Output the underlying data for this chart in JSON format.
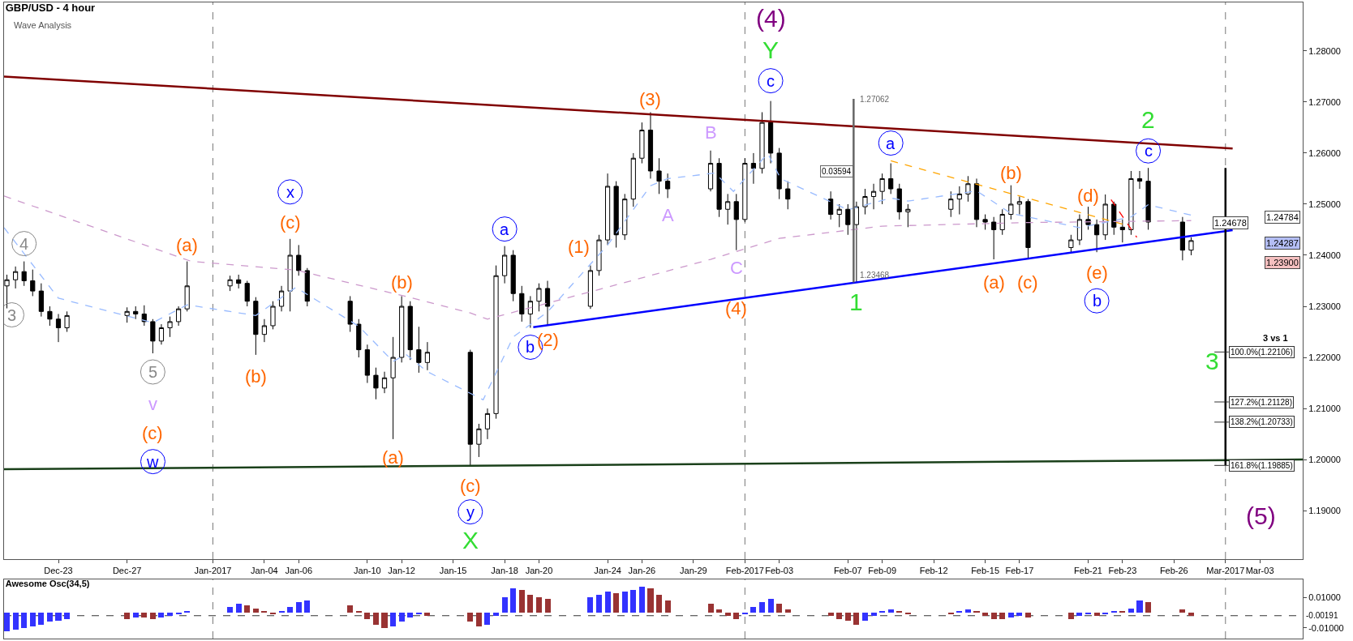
{
  "chart_data": [
    {
      "type": "candlestick",
      "title": "GBP/USD - 4 hour",
      "subtitle": "Wave Analysis",
      "color": "#000000",
      "x": [
        "2016-12-20T00:00",
        "2016-12-20T12:00",
        "2016-12-21T00:00",
        "2016-12-21T12:00",
        "2016-12-22T00:00",
        "2016-12-22T12:00",
        "2016-12-23T00:00",
        "2016-12-23T12:00",
        "2016-12-27T00:00",
        "2016-12-27T12:00",
        "2016-12-28T00:00",
        "2016-12-28T12:00",
        "2016-12-29T00:00",
        "2016-12-29T12:00",
        "2016-12-30T00:00",
        "2016-12-30T12:00",
        "2017-01-02T00:00",
        "2017-01-02T12:00",
        "2017-01-03T00:00",
        "2017-01-03T12:00",
        "2017-01-04T00:00",
        "2017-01-04T12:00",
        "2017-01-05T00:00",
        "2017-01-05T12:00",
        "2017-01-06T00:00",
        "2017-01-06T12:00",
        "2017-01-09T00:00",
        "2017-01-09T12:00",
        "2017-01-10T00:00",
        "2017-01-10T12:00",
        "2017-01-11T00:00",
        "2017-01-11T12:00",
        "2017-01-12T00:00",
        "2017-01-12T12:00",
        "2017-01-13T00:00",
        "2017-01-13T12:00",
        "2017-01-16T00:00",
        "2017-01-16T12:00",
        "2017-01-17T00:00",
        "2017-01-17T12:00",
        "2017-01-18T00:00",
        "2017-01-18T12:00",
        "2017-01-19T00:00",
        "2017-01-19T12:00",
        "2017-01-20T00:00",
        "2017-01-20T12:00",
        "2017-01-23T00:00",
        "2017-01-23T12:00",
        "2017-01-24T00:00",
        "2017-01-24T12:00",
        "2017-01-25T00:00",
        "2017-01-25T12:00",
        "2017-01-26T00:00",
        "2017-01-26T12:00",
        "2017-01-27T00:00",
        "2017-01-27T12:00",
        "2017-01-30T00:00",
        "2017-01-30T12:00",
        "2017-01-31T00:00",
        "2017-01-31T12:00",
        "2017-02-01T00:00",
        "2017-02-01T12:00",
        "2017-02-02T00:00",
        "2017-02-02T12:00",
        "2017-02-03T00:00",
        "2017-02-03T12:00",
        "2017-02-06T00:00",
        "2017-02-06T12:00",
        "2017-02-07T00:00",
        "2017-02-07T12:00",
        "2017-02-08T00:00",
        "2017-02-08T12:00",
        "2017-02-09T00:00",
        "2017-02-09T12:00",
        "2017-02-10T00:00",
        "2017-02-10T12:00",
        "2017-02-13T00:00",
        "2017-02-13T12:00",
        "2017-02-14T00:00",
        "2017-02-14T12:00",
        "2017-02-15T00:00",
        "2017-02-15T12:00",
        "2017-02-16T00:00",
        "2017-02-16T12:00",
        "2017-02-17T00:00",
        "2017-02-17T12:00",
        "2017-02-20T00:00",
        "2017-02-20T12:00",
        "2017-02-21T00:00",
        "2017-02-21T12:00",
        "2017-02-22T00:00",
        "2017-02-22T12:00",
        "2017-02-23T00:00",
        "2017-02-23T12:00",
        "2017-02-24T00:00",
        "2017-02-24T12:00",
        "2017-02-26T12:00",
        "2017-02-27T00:00"
      ],
      "ohlc": [
        [
          1.234,
          1.2362,
          1.2296,
          1.2352
        ],
        [
          1.2352,
          1.2378,
          1.2335,
          1.2368
        ],
        [
          1.2368,
          1.2388,
          1.234,
          1.235
        ],
        [
          1.235,
          1.2372,
          1.232,
          1.233
        ],
        [
          1.233,
          1.2345,
          1.228,
          1.229
        ],
        [
          1.229,
          1.23,
          1.2262,
          1.2275
        ],
        [
          1.2275,
          1.2285,
          1.223,
          1.2258
        ],
        [
          1.2258,
          1.229,
          1.225,
          1.2282
        ],
        [
          1.2282,
          1.2298,
          1.2268,
          1.229
        ],
        [
          1.229,
          1.23,
          1.2275,
          1.2285
        ],
        [
          1.2285,
          1.2302,
          1.2262,
          1.227
        ],
        [
          1.227,
          1.2275,
          1.2208,
          1.2232
        ],
        [
          1.2232,
          1.2265,
          1.2225,
          1.2258
        ],
        [
          1.2258,
          1.228,
          1.224,
          1.227
        ],
        [
          1.227,
          1.23,
          1.2262,
          1.2295
        ],
        [
          1.2295,
          1.2388,
          1.229,
          1.234
        ],
        [
          1.234,
          1.236,
          1.233,
          1.2352
        ],
        [
          1.2352,
          1.2362,
          1.2335,
          1.2345
        ],
        [
          1.2345,
          1.235,
          1.23,
          1.231
        ],
        [
          1.231,
          1.2318,
          1.2205,
          1.2245
        ],
        [
          1.2245,
          1.2275,
          1.223,
          1.2262
        ],
        [
          1.2262,
          1.231,
          1.2255,
          1.23
        ],
        [
          1.23,
          1.234,
          1.229,
          1.233
        ],
        [
          1.233,
          1.2432,
          1.229,
          1.24
        ],
        [
          1.24,
          1.242,
          1.236,
          1.237
        ],
        [
          1.237,
          1.2375,
          1.23,
          1.231
        ],
        [
          1.231,
          1.232,
          1.225,
          1.2265
        ],
        [
          1.2265,
          1.2275,
          1.22,
          1.2215
        ],
        [
          1.2215,
          1.2225,
          1.215,
          1.2165
        ],
        [
          1.2165,
          1.218,
          1.2118,
          1.214
        ],
        [
          1.214,
          1.2172,
          1.213,
          1.216
        ],
        [
          1.216,
          1.224,
          1.204,
          1.22
        ],
        [
          1.22,
          1.232,
          1.219,
          1.23
        ],
        [
          1.23,
          1.231,
          1.2195,
          1.2215
        ],
        [
          1.2215,
          1.226,
          1.217,
          1.219
        ],
        [
          1.219,
          1.223,
          1.2175,
          1.221
        ],
        [
          1.221,
          1.2215,
          1.1988,
          1.203
        ],
        [
          1.203,
          1.207,
          1.2005,
          1.206
        ],
        [
          1.206,
          1.21,
          1.204,
          1.209
        ],
        [
          1.209,
          1.238,
          1.208,
          1.236
        ],
        [
          1.236,
          1.2418,
          1.2345,
          1.24
        ],
        [
          1.24,
          1.241,
          1.231,
          1.2325
        ],
        [
          1.2325,
          1.234,
          1.227,
          1.2285
        ],
        [
          1.2285,
          1.232,
          1.2258,
          1.231
        ],
        [
          1.231,
          1.2345,
          1.229,
          1.2335
        ],
        [
          1.2335,
          1.235,
          1.2262,
          1.23
        ],
        [
          1.23,
          1.238,
          1.2295,
          1.237
        ],
        [
          1.237,
          1.244,
          1.236,
          1.243
        ],
        [
          1.243,
          1.256,
          1.242,
          1.2535
        ],
        [
          1.2535,
          1.2545,
          1.2415,
          1.244
        ],
        [
          1.244,
          1.252,
          1.243,
          1.251
        ],
        [
          1.251,
          1.26,
          1.2495,
          1.259
        ],
        [
          1.259,
          1.266,
          1.258,
          1.2645
        ],
        [
          1.2645,
          1.268,
          1.255,
          1.2565
        ],
        [
          1.2565,
          1.259,
          1.252,
          1.2545
        ],
        [
          1.2545,
          1.256,
          1.2512,
          1.253
        ],
        [
          1.253,
          1.2605,
          1.2525,
          1.258
        ],
        [
          1.258,
          1.259,
          1.2475,
          1.249
        ],
        [
          1.249,
          1.252,
          1.246,
          1.2505
        ],
        [
          1.2505,
          1.252,
          1.241,
          1.247
        ],
        [
          1.247,
          1.259,
          1.2465,
          1.258
        ],
        [
          1.258,
          1.26,
          1.254,
          1.257
        ],
        [
          1.257,
          1.268,
          1.256,
          1.266
        ],
        [
          1.266,
          1.2702,
          1.258,
          1.26
        ],
        [
          1.26,
          1.261,
          1.251,
          1.253
        ],
        [
          1.253,
          1.2545,
          1.249,
          1.251
        ],
        [
          1.251,
          1.2525,
          1.247,
          1.248
        ],
        [
          1.248,
          1.25,
          1.2455,
          1.249
        ],
        [
          1.249,
          1.25,
          1.244,
          1.246
        ],
        [
          1.246,
          1.2505,
          1.2347,
          1.2495
        ],
        [
          1.2495,
          1.253,
          1.248,
          1.2515
        ],
        [
          1.2515,
          1.254,
          1.249,
          1.2525
        ],
        [
          1.2525,
          1.256,
          1.25,
          1.255
        ],
        [
          1.255,
          1.258,
          1.252,
          1.253
        ],
        [
          1.253,
          1.254,
          1.247,
          1.2485
        ],
        [
          1.2485,
          1.25,
          1.2455,
          1.249
        ],
        [
          1.249,
          1.2525,
          1.2475,
          1.251
        ],
        [
          1.251,
          1.2535,
          1.248,
          1.252
        ],
        [
          1.252,
          1.2555,
          1.2505,
          1.254
        ],
        [
          1.254,
          1.255,
          1.2455,
          1.247
        ],
        [
          1.247,
          1.248,
          1.245,
          1.2465
        ],
        [
          1.2465,
          1.2475,
          1.2392,
          1.245
        ],
        [
          1.245,
          1.249,
          1.244,
          1.248
        ],
        [
          1.248,
          1.2537,
          1.247,
          1.25
        ],
        [
          1.25,
          1.2515,
          1.248,
          1.2505
        ],
        [
          1.2505,
          1.251,
          1.2392,
          1.2415
        ],
        [
          1.2415,
          1.244,
          1.2405,
          1.243
        ],
        [
          1.243,
          1.248,
          1.242,
          1.247
        ],
        [
          1.247,
          1.2495,
          1.245,
          1.246
        ],
        [
          1.246,
          1.247,
          1.2406,
          1.244
        ],
        [
          1.244,
          1.2519,
          1.243,
          1.25
        ],
        [
          1.25,
          1.2505,
          1.244,
          1.2455
        ],
        [
          1.2455,
          1.247,
          1.2425,
          1.245
        ],
        [
          1.245,
          1.2565,
          1.244,
          1.255
        ],
        [
          1.255,
          1.2565,
          1.253,
          1.2545
        ],
        [
          1.2545,
          1.2571,
          1.245,
          1.2465
        ],
        [
          1.2465,
          1.2475,
          1.239,
          1.241
        ],
        [
          1.241,
          1.2435,
          1.24,
          1.24287
        ]
      ],
      "series": [
        {
          "type": "line",
          "color": "#800000",
          "x": [
            "2016-12-19T20:00",
            "2017-03-01T10:00"
          ],
          "values": [
            1.275,
            1.2609
          ]
        },
        {
          "type": "line",
          "color": "#0000ff",
          "x": [
            "2017-01-19T16:00",
            "2017-03-01T10:00"
          ],
          "values": [
            1.2259,
            1.2449
          ]
        },
        {
          "type": "line",
          "color": "#1a401a",
          "x": [
            "2016-12-19T20:00",
            "2017-03-05T12:00"
          ],
          "values": [
            1.1981,
            1.2
          ]
        },
        {
          "type": "line",
          "color": "#ffa500",
          "line_style": "dashed",
          "x": [
            "2017-02-09T12:00",
            "2017-02-23T00:00"
          ],
          "values": [
            1.2585,
            1.2461
          ]
        },
        {
          "type": "line",
          "color": "#ff0000",
          "line_style": "dashed",
          "x": [
            "2017-02-22T08:00",
            "2017-02-23T20:00"
          ],
          "values": [
            1.2509,
            1.2435
          ]
        },
        {
          "type": "line",
          "color": "#99bbff",
          "line_style": "dashed",
          "x": [
            "2016-12-19T20:00",
            "2016-12-23T00:00",
            "2016-12-28T12:00",
            "2016-12-30T12:00",
            "2017-01-03T12:00",
            "2017-01-05T20:00",
            "2017-01-09T12:00",
            "2017-01-11T12:00",
            "2017-01-12T06:00",
            "2017-01-13T12:00",
            "2017-01-16T18:00",
            "2017-01-18T12:00",
            "2017-01-20T12:00",
            "2017-01-24T00:00",
            "2017-01-26T12:00",
            "2017-01-27T12:00",
            "2017-01-30T06:00",
            "2017-01-31T08:00",
            "2017-02-02T08:00",
            "2017-02-03T02:00",
            "2017-02-07T00:00",
            "2017-02-09T12:00",
            "2017-02-10T12:00",
            "2017-02-14T12:00",
            "2017-02-16T12:00",
            "2017-02-20T12:00",
            "2017-02-22T12:00",
            "2017-02-23T12:00",
            "2017-02-24T12:00",
            "2017-02-27T00:00"
          ],
          "values": [
            1.2454,
            1.2316,
            1.2268,
            1.2303,
            1.2282,
            1.2337,
            1.2261,
            1.2192,
            1.2206,
            1.2172,
            1.2117,
            1.224,
            1.2289,
            1.242,
            1.2536,
            1.255,
            1.2561,
            1.2525,
            1.2599,
            1.255,
            1.2489,
            1.2512,
            1.2506,
            1.2526,
            1.2482,
            1.2454,
            1.2468,
            1.2475,
            1.2499,
            1.24784
          ]
        },
        {
          "type": "line",
          "color": "#cc99cc",
          "line_style": "dashed",
          "x": [
            "2016-12-19T20:00",
            "2016-12-30T18:00",
            "2017-01-05T20:00",
            "2017-01-12T04:00",
            "2017-01-16T00:00",
            "2017-01-17T00:00",
            "2017-01-23T04:00",
            "2017-01-30T00:00",
            "2017-02-03T00:00",
            "2017-02-09T00:00",
            "2017-02-17T12:00",
            "2017-02-27T00:00"
          ],
          "values": [
            1.2516,
            1.2388,
            1.2371,
            1.232,
            1.2287,
            1.2275,
            1.233,
            1.2392,
            1.2433,
            1.2457,
            1.2464,
            1.24678
          ]
        },
        {
          "type": "line",
          "color": "#666666",
          "x": [
            "2017-02-07T08:00",
            "2017-02-07T08:00"
          ],
          "values": [
            1.23468,
            1.27062
          ]
        },
        {
          "type": "line",
          "color": "#000000",
          "x": [
            "2017-03-01T00:00",
            "2017-03-01T00:00"
          ],
          "values": [
            1.2571,
            1.1989
          ]
        }
      ],
      "xlim": [
        "2016-12-19T20:00",
        "2017-03-05T12:00"
      ],
      "xticks": [
        {
          "value": "2016-12-23",
          "label": "Dec-23"
        },
        {
          "value": "2016-12-27",
          "label": "Dec-27"
        },
        {
          "value": "2017-01-01",
          "label": "Jan-2017"
        },
        {
          "value": "2017-01-04",
          "label": "Jan-04"
        },
        {
          "value": "2017-01-06",
          "label": "Jan-06"
        },
        {
          "value": "2017-01-10",
          "label": "Jan-10"
        },
        {
          "value": "2017-01-12",
          "label": "Jan-12"
        },
        {
          "value": "2017-01-15",
          "label": "Jan-15"
        },
        {
          "value": "2017-01-18",
          "label": "Jan-18"
        },
        {
          "value": "2017-01-20",
          "label": "Jan-20"
        },
        {
          "value": "2017-01-24",
          "label": "Jan-24"
        },
        {
          "value": "2017-01-26",
          "label": "Jan-26"
        },
        {
          "value": "2017-01-29",
          "label": "Jan-29"
        },
        {
          "value": "2017-02-01",
          "label": "Feb-2017"
        },
        {
          "value": "2017-02-03",
          "label": "Feb-03"
        },
        {
          "value": "2017-02-07",
          "label": "Feb-07"
        },
        {
          "value": "2017-02-09",
          "label": "Feb-09"
        },
        {
          "value": "2017-02-12",
          "label": "Feb-12"
        },
        {
          "value": "2017-02-15",
          "label": "Feb-15"
        },
        {
          "value": "2017-02-17",
          "label": "Feb-17"
        },
        {
          "value": "2017-02-21",
          "label": "Feb-21"
        },
        {
          "value": "2017-02-23",
          "label": "Feb-23"
        },
        {
          "value": "2017-02-26",
          "label": "Feb-26"
        },
        {
          "value": "2017-03-01",
          "label": "Mar-2017"
        },
        {
          "value": "2017-03-03",
          "label": "Mar-03"
        }
      ],
      "ylim": [
        1.1805,
        1.2895
      ],
      "yticks": [
        {
          "value": 1.19,
          "label": "1.19000"
        },
        {
          "value": 1.2,
          "label": "1.20000"
        },
        {
          "value": 1.21,
          "label": "1.21000"
        },
        {
          "value": 1.22,
          "label": "1.22000"
        },
        {
          "value": 1.23,
          "label": "1.23000"
        },
        {
          "value": 1.24,
          "label": "1.24000"
        },
        {
          "value": 1.25,
          "label": "1.25000"
        },
        {
          "value": 1.26,
          "label": "1.26000"
        },
        {
          "value": 1.27,
          "label": "1.27000"
        },
        {
          "value": 1.28,
          "label": "1.28000"
        }
      ],
      "ref_lines": [
        {
          "axis": "x",
          "value": "2017-01-01",
          "color": "#777777",
          "line_style": "dashed"
        },
        {
          "axis": "x",
          "value": "2017-02-01",
          "color": "#777777",
          "line_style": "dashed"
        },
        {
          "axis": "x",
          "value": "2017-03-01",
          "color": "#777777",
          "line_style": "dashed"
        },
        {
          "axis": "y",
          "value": 1.22106,
          "label": "100.0%(1.22106)",
          "color": "#333333"
        },
        {
          "axis": "y",
          "value": 1.21128,
          "label": "127.2%(1.21128)",
          "color": "#333333"
        },
        {
          "axis": "y",
          "value": 1.20733,
          "label": "138.2%(1.20733)",
          "color": "#333333"
        },
        {
          "axis": "y",
          "value": 1.19885,
          "label": "161.8%(1.19885)",
          "color": "#333333"
        }
      ],
      "annotations": [
        {
          "text": "3",
          "x": "2016-12-20T00:00",
          "y": 1.2296
        },
        {
          "text": "4",
          "x": "2016-12-21T00:00",
          "y": 1.2388
        },
        {
          "text": "5",
          "x": "2016-12-28T12:00",
          "y": 1.2208
        },
        {
          "text": "v",
          "x": "2016-12-28T12:00",
          "y": 1.2208
        },
        "(c)",
        "w",
        {
          "text": "(a)",
          "x": "2016-12-30T12:00",
          "y": 1.2388
        },
        {
          "text": "(b)",
          "x": "2017-01-03T12:00",
          "y": 1.2205
        },
        {
          "text": "x",
          "x": "2017-01-05T12:00",
          "y": 1.2432
        },
        {
          "text": "(c)",
          "x": "2017-01-05T12:00",
          "y": 1.2432
        },
        {
          "text": "(a)",
          "x": "2017-01-11T12:00",
          "y": 1.204
        },
        {
          "text": "(b)",
          "x": "2017-01-12T00:00",
          "y": 1.232
        },
        {
          "text": "(c)",
          "x": "2017-01-16T00:00",
          "y": 1.1988
        },
        {
          "text": "y",
          "x": "2017-01-16T00:00",
          "y": 1.1988
        },
        {
          "text": "X",
          "x": "2017-01-16T00:00",
          "y": 1.1988
        },
        {
          "text": "a",
          "x": "2017-01-18T00:00",
          "y": 1.2418
        },
        {
          "text": "b",
          "x": "2017-01-19T12:00",
          "y": 1.2258
        },
        {
          "text": "(1)",
          "x": "2017-01-23T00:00",
          "y": 1.238
        },
        {
          "text": "(2)",
          "x": "2017-01-20T12:00",
          "y": 1.2262
        },
        {
          "text": "(3)",
          "x": "2017-01-26T12:00",
          "y": 1.268
        },
        {
          "text": "A",
          "x": "2017-01-27T12:00",
          "y": 1.2512
        },
        {
          "text": "B",
          "x": "2017-01-30T00:00",
          "y": 1.2605
        },
        {
          "text": "C",
          "x": "2017-01-31T12:00",
          "y": 1.241
        },
        {
          "text": "(4)",
          "x": "2017-01-31T12:00",
          "y": 1.241
        },
        {
          "text": "(4)",
          "x": "2017-02-02T12:00",
          "y": 1.2702
        },
        {
          "text": "Y",
          "x": "2017-02-02T12:00",
          "y": 1.2702
        },
        {
          "text": "c",
          "x": "2017-02-02T12:00",
          "y": 1.2702
        },
        {
          "text": "1.27062",
          "x": "2017-02-07T08:00",
          "y": 1.27062
        },
        {
          "text": "1.23468",
          "x": "2017-02-07T08:00",
          "y": 1.23468
        },
        "0.03594",
        {
          "text": "1",
          "x": "2017-02-07T12:00",
          "y": 1.2347
        },
        {
          "text": "a",
          "x": "2017-02-09T12:00",
          "y": 1.258
        },
        {
          "text": "(a)",
          "x": "2017-02-15T12:00",
          "y": 1.2392
        },
        {
          "text": "(b)",
          "x": "2017-02-16T12:00",
          "y": 1.2537
        },
        {
          "text": "(c)",
          "x": "2017-02-17T12:00",
          "y": 1.2392
        },
        {
          "text": "(d)",
          "x": "2017-02-21T00:00",
          "y": 1.2495
        },
        {
          "text": "(e)",
          "x": "2017-02-21T12:00",
          "y": 1.2406
        },
        {
          "text": "b",
          "x": "2017-02-21T12:00",
          "y": 1.2406
        },
        {
          "text": "2",
          "x": "2017-02-24T12:00",
          "y": 1.2571
        },
        {
          "text": "c",
          "x": "2017-02-24T12:00",
          "y": 1.2571
        },
        "3",
        {
          "text": "(5)",
          "x": "2017-03-01T00:00",
          "y": 1.1989
        },
        "1.24784",
        "1.24678",
        "1.24287",
        "1.23900",
        "3 vs 1"
      ]
    },
    {
      "type": "bar",
      "title": "Awesome Osc(34,5)",
      "x": [
        "2016-12-20T00:00",
        "2016-12-20T12:00",
        "2016-12-21T00:00",
        "2016-12-21T12:00",
        "2016-12-22T00:00",
        "2016-12-22T12:00",
        "2016-12-23T00:00",
        "2016-12-23T12:00",
        "2016-12-27T00:00",
        "2016-12-27T12:00",
        "2016-12-28T00:00",
        "2016-12-28T12:00",
        "2016-12-29T00:00",
        "2016-12-29T12:00",
        "2016-12-30T00:00",
        "2016-12-30T12:00",
        "2017-01-02T00:00",
        "2017-01-02T12:00",
        "2017-01-03T00:00",
        "2017-01-03T12:00",
        "2017-01-04T00:00",
        "2017-01-04T12:00",
        "2017-01-05T00:00",
        "2017-01-05T12:00",
        "2017-01-06T00:00",
        "2017-01-06T12:00",
        "2017-01-09T00:00",
        "2017-01-09T12:00",
        "2017-01-10T00:00",
        "2017-01-10T12:00",
        "2017-01-11T00:00",
        "2017-01-11T12:00",
        "2017-01-12T00:00",
        "2017-01-12T12:00",
        "2017-01-13T00:00",
        "2017-01-13T12:00",
        "2017-01-16T00:00",
        "2017-01-16T12:00",
        "2017-01-17T00:00",
        "2017-01-17T12:00",
        "2017-01-18T00:00",
        "2017-01-18T12:00",
        "2017-01-19T00:00",
        "2017-01-19T12:00",
        "2017-01-20T00:00",
        "2017-01-20T12:00",
        "2017-01-23T00:00",
        "2017-01-23T12:00",
        "2017-01-24T00:00",
        "2017-01-24T12:00",
        "2017-01-25T00:00",
        "2017-01-25T12:00",
        "2017-01-26T00:00",
        "2017-01-26T12:00",
        "2017-01-27T00:00",
        "2017-01-27T12:00",
        "2017-01-30T00:00",
        "2017-01-30T12:00",
        "2017-01-31T00:00",
        "2017-01-31T12:00",
        "2017-02-01T00:00",
        "2017-02-01T12:00",
        "2017-02-02T00:00",
        "2017-02-02T12:00",
        "2017-02-03T00:00",
        "2017-02-03T12:00",
        "2017-02-06T00:00",
        "2017-02-06T12:00",
        "2017-02-07T00:00",
        "2017-02-07T12:00",
        "2017-02-08T00:00",
        "2017-02-08T12:00",
        "2017-02-09T00:00",
        "2017-02-09T12:00",
        "2017-02-10T00:00",
        "2017-02-10T12:00",
        "2017-02-13T00:00",
        "2017-02-13T12:00",
        "2017-02-14T00:00",
        "2017-02-14T12:00",
        "2017-02-15T00:00",
        "2017-02-15T12:00",
        "2017-02-16T00:00",
        "2017-02-16T12:00",
        "2017-02-17T00:00",
        "2017-02-17T12:00",
        "2017-02-20T00:00",
        "2017-02-20T12:00",
        "2017-02-21T00:00",
        "2017-02-21T12:00",
        "2017-02-22T00:00",
        "2017-02-22T12:00",
        "2017-02-23T00:00",
        "2017-02-23T12:00",
        "2017-02-24T00:00",
        "2017-02-24T12:00",
        "2017-02-26T12:00",
        "2017-02-27T00:00"
      ],
      "values": [
        -0.012,
        -0.011,
        -0.01,
        -0.009,
        -0.008,
        -0.006,
        -0.005,
        -0.004,
        -0.004,
        -0.003,
        -0.003,
        -0.004,
        -0.003,
        -0.002,
        -0.001,
        0.001,
        0.004,
        0.006,
        0.005,
        0.003,
        0.001,
        -0.001,
        0.001,
        0.004,
        0.007,
        0.008,
        0.005,
        0.001,
        -0.004,
        -0.008,
        -0.01,
        -0.009,
        -0.006,
        -0.003,
        -0.001,
        -0.002,
        -0.006,
        -0.009,
        -0.008,
        -0.002,
        0.01,
        0.016,
        0.015,
        0.012,
        0.01,
        0.009,
        0.01,
        0.012,
        0.014,
        0.013,
        0.014,
        0.015,
        0.017,
        0.016,
        0.012,
        0.008,
        0.006,
        0.002,
        -0.002,
        -0.004,
        -0.001,
        0.004,
        0.007,
        0.009,
        0.006,
        0.002,
        -0.002,
        -0.004,
        -0.005,
        -0.008,
        -0.005,
        -0.002,
        0.001,
        0.002,
        0.001,
        -0.001,
        -0.001,
        0.001,
        0.002,
        0.001,
        -0.002,
        -0.004,
        -0.004,
        -0.003,
        -0.002,
        -0.003,
        -0.004,
        -0.002,
        -0.001,
        -0.002,
        -0.001,
        0.001,
        0.001,
        0.003,
        0.008,
        0.007,
        0.002,
        -0.002
      ],
      "colors": [
        "#3333ff",
        "#3333ff",
        "#3333ff",
        "#3333ff",
        "#3333ff",
        "#3333ff",
        "#3333ff",
        "#3333ff",
        "#993333",
        "#3333ff",
        "#993333",
        "#993333",
        "#3333ff",
        "#3333ff",
        "#3333ff",
        "#3333ff",
        "#3333ff",
        "#3333ff",
        "#993333",
        "#993333",
        "#993333",
        "#993333",
        "#3333ff",
        "#3333ff",
        "#3333ff",
        "#3333ff",
        "#993333",
        "#993333",
        "#993333",
        "#993333",
        "#993333",
        "#3333ff",
        "#3333ff",
        "#3333ff",
        "#3333ff",
        "#993333",
        "#993333",
        "#993333",
        "#3333ff",
        "#3333ff",
        "#3333ff",
        "#3333ff",
        "#993333",
        "#993333",
        "#993333",
        "#993333",
        "#3333ff",
        "#3333ff",
        "#3333ff",
        "#993333",
        "#3333ff",
        "#3333ff",
        "#3333ff",
        "#993333",
        "#993333",
        "#993333",
        "#993333",
        "#993333",
        "#993333",
        "#993333",
        "#3333ff",
        "#3333ff",
        "#3333ff",
        "#3333ff",
        "#993333",
        "#993333",
        "#993333",
        "#993333",
        "#993333",
        "#993333",
        "#3333ff",
        "#3333ff",
        "#3333ff",
        "#3333ff",
        "#993333",
        "#993333",
        "#993333",
        "#3333ff",
        "#3333ff",
        "#993333",
        "#993333",
        "#993333",
        "#993333",
        "#3333ff",
        "#3333ff",
        "#993333",
        "#993333",
        "#3333ff",
        "#3333ff",
        "#993333",
        "#3333ff",
        "#3333ff",
        "#993333",
        "#3333ff",
        "#3333ff",
        "#993333",
        "#993333",
        "#993333"
      ],
      "xlim": [
        "2016-12-19T20:00",
        "2017-03-05T12:00"
      ],
      "ylim": [
        -0.017,
        0.022
      ],
      "yticks": [
        {
          "value": 0.01,
          "label": "0.01000"
        },
        {
          "value": -0.01,
          "label": "-0.01000"
        }
      ],
      "ref_lines": [
        {
          "axis": "y",
          "value": -0.00191,
          "label": "-0.00191",
          "color": "#333333",
          "line_style": "dashed"
        },
        {
          "axis": "x",
          "value": "2017-01-01",
          "color": "#777777",
          "line_style": "dashed"
        },
        {
          "axis": "x",
          "value": "2017-02-01",
          "color": "#777777",
          "line_style": "dashed"
        },
        {
          "axis": "x",
          "value": "2017-03-01",
          "color": "#777777",
          "line_style": "dashed"
        }
      ],
      "tick_labels": "y"
    }
  ]
}
